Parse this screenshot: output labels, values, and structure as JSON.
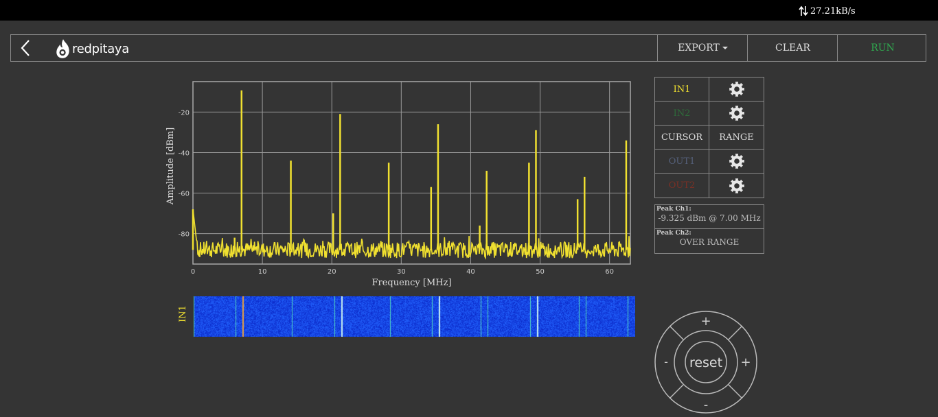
{
  "status": {
    "net_speed": "27.21kB/s"
  },
  "header": {
    "logo_text": "redpitaya",
    "buttons": {
      "export": "EXPORT",
      "clear": "CLEAR",
      "run": "RUN"
    },
    "colors": {
      "run": "#2fa84f"
    }
  },
  "channels": {
    "in1": {
      "label": "IN1",
      "color": "#f0e030"
    },
    "in2": {
      "label": "IN2",
      "color": "#2e6b3a"
    },
    "cursor": "CURSOR",
    "range": "RANGE",
    "out1": {
      "label": "OUT1",
      "color": "#55607a"
    },
    "out2": {
      "label": "OUT2",
      "color": "#7a3025"
    }
  },
  "peaks": {
    "ch1_label": "Peak Ch1:",
    "ch1_value": "-9.325 dBm @ 7.00 MHz",
    "ch2_label": "Peak Ch2:",
    "ch2_value": "OVER RANGE"
  },
  "waterfall": {
    "label": "IN1"
  },
  "controls": {
    "reset": "reset",
    "plus": "+",
    "minus": "-"
  },
  "chart_data": {
    "type": "line",
    "xlabel": "Frequency [MHz]",
    "ylabel": "Amplitude [dBm]",
    "xlim": [
      0,
      63
    ],
    "ylim": [
      -95,
      -5
    ],
    "xticks": [
      0,
      10,
      20,
      30,
      40,
      50,
      60
    ],
    "yticks": [
      -20,
      -40,
      -60,
      -80
    ],
    "grid": true,
    "noise_floor": -88,
    "series": [
      {
        "color": "#f0e030",
        "peaks": [
          {
            "x": 0.0,
            "y": -68
          },
          {
            "x": 6.0,
            "y": -82
          },
          {
            "x": 7.0,
            "y": -9.3
          },
          {
            "x": 14.1,
            "y": -44
          },
          {
            "x": 20.2,
            "y": -70
          },
          {
            "x": 21.2,
            "y": -21
          },
          {
            "x": 28.2,
            "y": -45
          },
          {
            "x": 34.3,
            "y": -57
          },
          {
            "x": 35.3,
            "y": -26
          },
          {
            "x": 41.3,
            "y": -76
          },
          {
            "x": 42.3,
            "y": -49
          },
          {
            "x": 48.4,
            "y": -45
          },
          {
            "x": 49.4,
            "y": -29
          },
          {
            "x": 55.4,
            "y": -63
          },
          {
            "x": 56.4,
            "y": -52
          },
          {
            "x": 62.4,
            "y": -34
          }
        ]
      }
    ]
  }
}
